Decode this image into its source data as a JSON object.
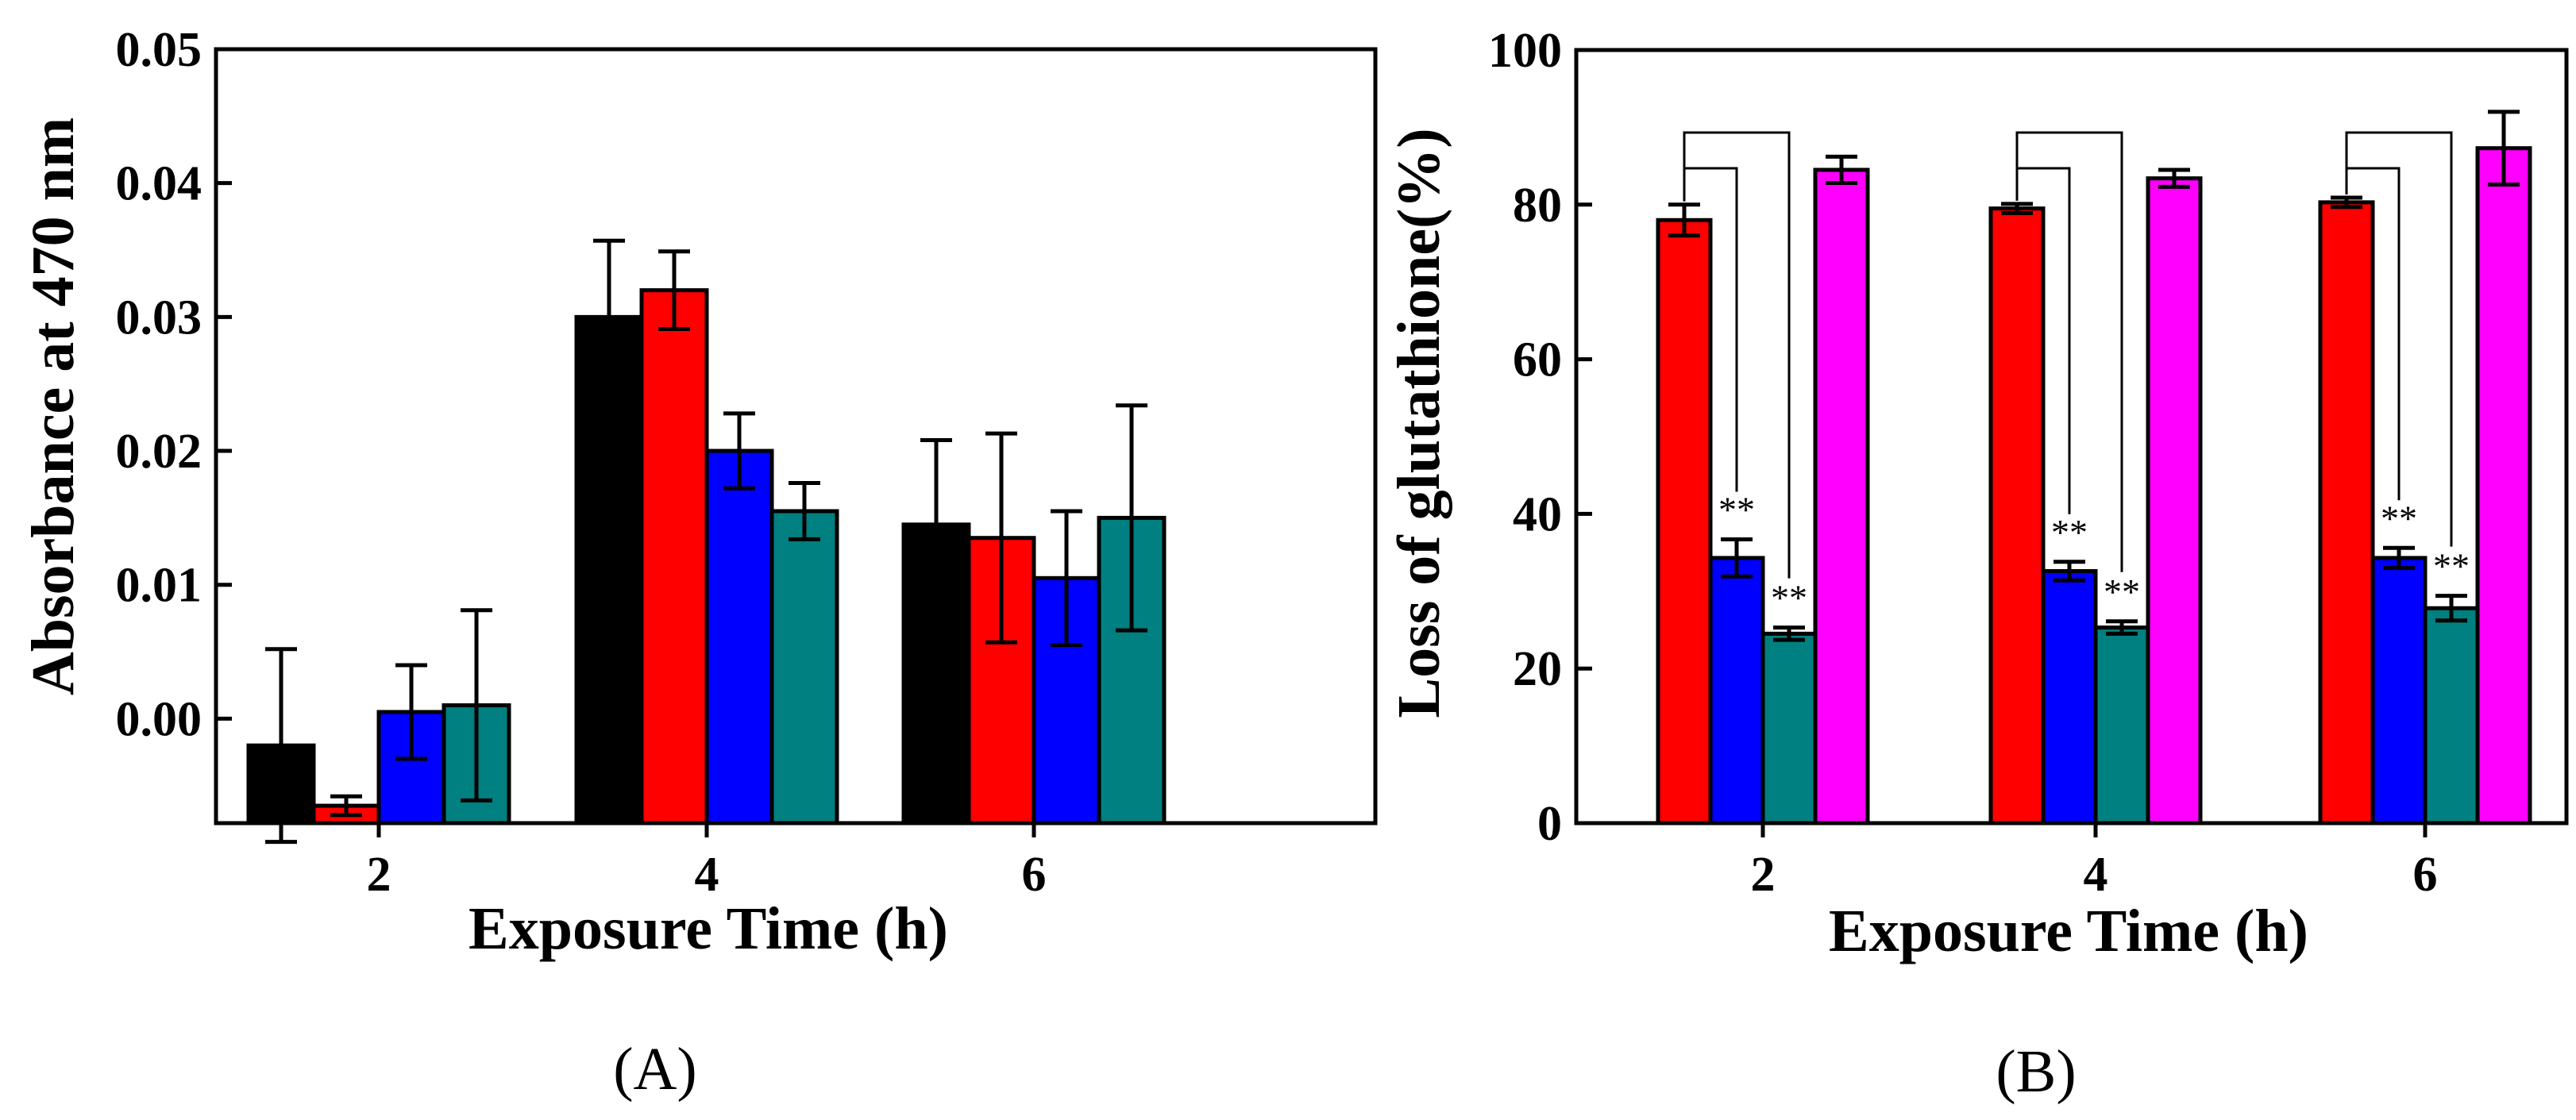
{
  "colors": {
    "black": "#000000",
    "red": "#ff0000",
    "blue": "#0000ff",
    "teal": "#008080",
    "magenta": "#ff00ff"
  },
  "chart_data": [
    {
      "type": "bar",
      "panel_label": "(A)",
      "xlabel": "Exposure Time (h)",
      "ylabel": "Absorbance at 470 nm",
      "categories": [
        "2",
        "4",
        "6"
      ],
      "ylim": [
        -0.0078,
        0.05
      ],
      "yticks": [
        0.0,
        0.01,
        0.02,
        0.03,
        0.04,
        0.05
      ],
      "ytick_labels": [
        "0.00",
        "0.01",
        "0.02",
        "0.03",
        "0.04",
        "0.05"
      ],
      "series": [
        {
          "color": "black",
          "values": [
            -0.002,
            0.03,
            0.0145
          ],
          "errors": [
            0.0072,
            0.0057,
            0.0063
          ]
        },
        {
          "color": "red",
          "values": [
            -0.0065,
            0.032,
            0.0135
          ],
          "errors": [
            0.0007,
            0.0029,
            0.0078
          ]
        },
        {
          "color": "blue",
          "values": [
            0.0005,
            0.02,
            0.0105
          ],
          "errors": [
            0.0035,
            0.0028,
            0.005
          ]
        },
        {
          "color": "teal",
          "values": [
            0.001,
            0.0155,
            0.015
          ],
          "errors": [
            0.0071,
            0.0021,
            0.0084
          ]
        }
      ]
    },
    {
      "type": "bar",
      "panel_label": "(B)",
      "xlabel": "Exposure Time (h)",
      "ylabel": "Loss of glutathione(%)",
      "categories": [
        "2",
        "4",
        "6"
      ],
      "ylim": [
        0,
        100
      ],
      "yticks": [
        0,
        20,
        40,
        60,
        80,
        100
      ],
      "ytick_labels": [
        "0",
        "20",
        "40",
        "60",
        "80",
        "100"
      ],
      "significance_label": "**",
      "series": [
        {
          "color": "red",
          "values": [
            78,
            79.5,
            80.3
          ],
          "errors": [
            2.0,
            0.6,
            0.6
          ]
        },
        {
          "color": "blue",
          "values": [
            34.3,
            32.6,
            34.3
          ],
          "errors": [
            2.4,
            1.2,
            1.3
          ]
        },
        {
          "color": "teal",
          "values": [
            24.5,
            25.3,
            27.8
          ],
          "errors": [
            0.8,
            0.8,
            1.6
          ]
        },
        {
          "color": "magenta",
          "values": [
            84.5,
            83.4,
            87.3
          ],
          "errors": [
            1.7,
            1.1,
            4.7
          ]
        }
      ]
    }
  ]
}
